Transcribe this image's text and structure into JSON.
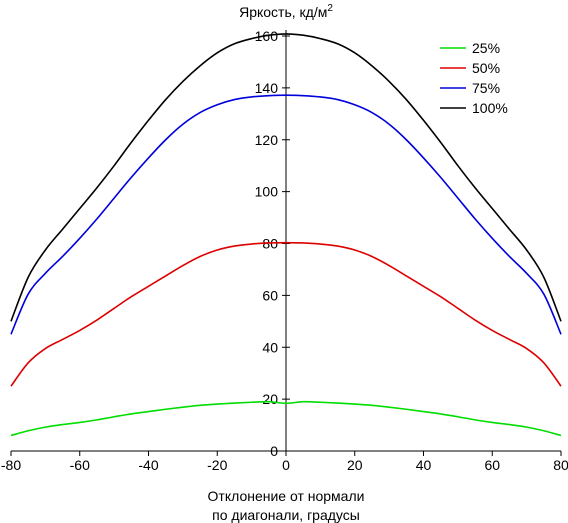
{
  "chart_data": {
    "type": "line",
    "title": "Яркость, кд/м",
    "title_superscript": "2",
    "xlabel_line1": "Отклонение от нормали",
    "xlabel_line2": "по диагонали, градусы",
    "xlim": [
      -80,
      80
    ],
    "ylim": [
      0,
      160
    ],
    "x_ticks": [
      -80,
      -60,
      -40,
      -20,
      0,
      20,
      40,
      60,
      80
    ],
    "y_ticks": [
      0,
      20,
      40,
      60,
      80,
      100,
      120,
      140,
      160
    ],
    "grid": false,
    "legend_position": "top-right",
    "x": [
      -80,
      -75,
      -70,
      -65,
      -60,
      -55,
      -50,
      -45,
      -40,
      -35,
      -30,
      -25,
      -20,
      -15,
      -10,
      -5,
      0,
      5,
      10,
      15,
      20,
      25,
      30,
      35,
      40,
      45,
      50,
      55,
      60,
      65,
      70,
      75,
      80
    ],
    "series": [
      {
        "name": "25%",
        "color": "#00dd00",
        "values": [
          6.0,
          7.8,
          9.2,
          10.2,
          11.0,
          12.0,
          13.2,
          14.3,
          15.2,
          16.1,
          16.9,
          17.6,
          18.1,
          18.5,
          18.8,
          19.0,
          18.4,
          19.0,
          18.8,
          18.5,
          18.1,
          17.6,
          16.9,
          16.1,
          15.2,
          14.3,
          13.2,
          12.0,
          11.0,
          10.2,
          9.2,
          7.8,
          6.0
        ]
      },
      {
        "name": "50%",
        "color": "#dd0000",
        "values": [
          25.0,
          34.0,
          39.5,
          43.0,
          46.5,
          50.5,
          55.0,
          59.5,
          63.5,
          67.5,
          71.5,
          75.0,
          77.5,
          79.0,
          79.8,
          80.2,
          80.3,
          80.2,
          79.8,
          79.0,
          77.5,
          75.0,
          71.5,
          67.5,
          63.5,
          59.5,
          55.0,
          50.5,
          46.5,
          43.0,
          39.5,
          34.0,
          25.0
        ]
      },
      {
        "name": "75%",
        "color": "#0000dd",
        "values": [
          45.0,
          60.5,
          68.5,
          75.0,
          82.0,
          89.5,
          97.5,
          105.5,
          113.0,
          120.0,
          126.0,
          130.5,
          133.5,
          135.5,
          136.5,
          137.0,
          137.2,
          137.0,
          136.5,
          135.5,
          133.5,
          130.5,
          126.0,
          120.0,
          113.0,
          105.5,
          97.5,
          89.5,
          82.0,
          75.0,
          68.5,
          60.5,
          45.0
        ]
      },
      {
        "name": "100%",
        "color": "#000000",
        "values": [
          50.0,
          67.0,
          77.5,
          85.5,
          93.5,
          101.5,
          110.0,
          119.0,
          127.5,
          135.5,
          142.5,
          148.5,
          153.5,
          157.0,
          159.0,
          160.3,
          160.8,
          160.3,
          159.0,
          157.0,
          153.5,
          148.5,
          142.5,
          135.5,
          127.5,
          119.0,
          110.0,
          101.5,
          93.5,
          85.5,
          77.5,
          67.0,
          50.0
        ]
      }
    ]
  }
}
